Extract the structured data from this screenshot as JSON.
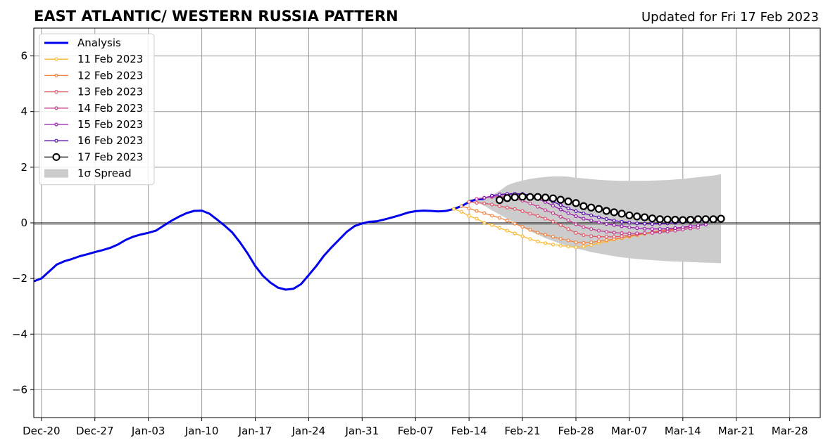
{
  "chart_data": {
    "type": "line",
    "title": "EAST ATLANTIC/ WESTERN RUSSIA PATTERN",
    "subtitle": "Updated for Fri 17 Feb 2023",
    "xlabel": "",
    "ylabel": "",
    "ylim": [
      -7,
      7
    ],
    "xlim": [
      "2022-12-19",
      "2023-04-01"
    ],
    "grid": true,
    "legend_position": "top-left",
    "x_ticks": [
      {
        "date": "2022-12-20",
        "label": "Dec-20"
      },
      {
        "date": "2022-12-27",
        "label": "Dec-27"
      },
      {
        "date": "2023-01-03",
        "label": "Jan-03"
      },
      {
        "date": "2023-01-10",
        "label": "Jan-10"
      },
      {
        "date": "2023-01-17",
        "label": "Jan-17"
      },
      {
        "date": "2023-01-24",
        "label": "Jan-24"
      },
      {
        "date": "2023-01-31",
        "label": "Jan-31"
      },
      {
        "date": "2023-02-07",
        "label": "Feb-07"
      },
      {
        "date": "2023-02-14",
        "label": "Feb-14"
      },
      {
        "date": "2023-02-21",
        "label": "Feb-21"
      },
      {
        "date": "2023-02-28",
        "label": "Feb-28"
      },
      {
        "date": "2023-03-07",
        "label": "Mar-07"
      },
      {
        "date": "2023-03-14",
        "label": "Mar-14"
      },
      {
        "date": "2023-03-21",
        "label": "Mar-21"
      },
      {
        "date": "2023-03-28",
        "label": "Mar-28"
      }
    ],
    "y_ticks": [
      {
        "value": 6,
        "label": "6"
      },
      {
        "value": 4,
        "label": "4"
      },
      {
        "value": 2,
        "label": "2"
      },
      {
        "value": 0,
        "label": "0"
      },
      {
        "value": -2,
        "label": "−2"
      },
      {
        "value": -4,
        "label": "−4"
      },
      {
        "value": -6,
        "label": "−6"
      }
    ],
    "series": [
      {
        "name": "Analysis",
        "color": "#0000ee",
        "marker": "none",
        "x": [
          "2022-12-19",
          "2022-12-20",
          "2022-12-21",
          "2022-12-22",
          "2022-12-23",
          "2022-12-24",
          "2022-12-25",
          "2022-12-26",
          "2022-12-27",
          "2022-12-28",
          "2022-12-29",
          "2022-12-30",
          "2022-12-31",
          "2023-01-01",
          "2023-01-02",
          "2023-01-03",
          "2023-01-04",
          "2023-01-05",
          "2023-01-06",
          "2023-01-07",
          "2023-01-08",
          "2023-01-09",
          "2023-01-10",
          "2023-01-11",
          "2023-01-12",
          "2023-01-13",
          "2023-01-14",
          "2023-01-15",
          "2023-01-16",
          "2023-01-17",
          "2023-01-18",
          "2023-01-19",
          "2023-01-20",
          "2023-01-21",
          "2023-01-22",
          "2023-01-23",
          "2023-01-24",
          "2023-01-25",
          "2023-01-26",
          "2023-01-27",
          "2023-01-28",
          "2023-01-29",
          "2023-01-30",
          "2023-01-31",
          "2023-02-01",
          "2023-02-02",
          "2023-02-03",
          "2023-02-04",
          "2023-02-05",
          "2023-02-06",
          "2023-02-07",
          "2023-02-08",
          "2023-02-09",
          "2023-02-10",
          "2023-02-11",
          "2023-02-12",
          "2023-02-13",
          "2023-02-14",
          "2023-02-15",
          "2023-02-16"
        ],
        "values": [
          -2.1,
          -2.0,
          -1.75,
          -1.5,
          -1.38,
          -1.3,
          -1.2,
          -1.13,
          -1.05,
          -0.98,
          -0.9,
          -0.78,
          -0.62,
          -0.5,
          -0.42,
          -0.36,
          -0.28,
          -0.1,
          0.07,
          0.22,
          0.35,
          0.43,
          0.44,
          0.33,
          0.12,
          -0.1,
          -0.35,
          -0.7,
          -1.1,
          -1.55,
          -1.9,
          -2.15,
          -2.33,
          -2.4,
          -2.37,
          -2.2,
          -1.88,
          -1.55,
          -1.18,
          -0.88,
          -0.6,
          -0.32,
          -0.12,
          -0.02,
          0.04,
          0.06,
          0.13,
          0.2,
          0.28,
          0.37,
          0.42,
          0.44,
          0.43,
          0.41,
          0.43,
          0.5,
          0.6,
          0.75,
          0.85,
          0.86
        ]
      },
      {
        "name": "11 Feb 2023",
        "color": "#fcb830",
        "marker": "dot",
        "x": [
          "2023-02-12",
          "2023-02-13",
          "2023-02-14",
          "2023-02-15",
          "2023-02-16",
          "2023-02-17",
          "2023-02-18",
          "2023-02-19",
          "2023-02-20",
          "2023-02-21",
          "2023-02-22",
          "2023-02-23",
          "2023-02-24",
          "2023-02-25",
          "2023-02-26",
          "2023-02-27",
          "2023-02-28",
          "2023-03-01",
          "2023-03-02",
          "2023-03-03",
          "2023-03-04",
          "2023-03-05",
          "2023-03-06",
          "2023-03-07",
          "2023-03-08",
          "2023-03-09",
          "2023-03-10",
          "2023-03-11",
          "2023-03-12",
          "2023-03-13"
        ],
        "values": [
          0.5,
          0.4,
          0.25,
          0.15,
          0.0,
          -0.08,
          -0.18,
          -0.28,
          -0.38,
          -0.48,
          -0.58,
          -0.67,
          -0.73,
          -0.78,
          -0.82,
          -0.85,
          -0.88,
          -0.85,
          -0.8,
          -0.72,
          -0.66,
          -0.6,
          -0.55,
          -0.5,
          -0.45,
          -0.4,
          -0.36,
          -0.32,
          -0.28,
          -0.25
        ]
      },
      {
        "name": "12 Feb 2023",
        "color": "#f4823c",
        "marker": "dot",
        "x": [
          "2023-02-13",
          "2023-02-14",
          "2023-02-15",
          "2023-02-16",
          "2023-02-17",
          "2023-02-18",
          "2023-02-19",
          "2023-02-20",
          "2023-02-21",
          "2023-02-22",
          "2023-02-23",
          "2023-02-24",
          "2023-02-25",
          "2023-02-26",
          "2023-02-27",
          "2023-02-28",
          "2023-03-01",
          "2023-03-02",
          "2023-03-03",
          "2023-03-04",
          "2023-03-05",
          "2023-03-06",
          "2023-03-07",
          "2023-03-08",
          "2023-03-09",
          "2023-03-10",
          "2023-03-11",
          "2023-03-12",
          "2023-03-13",
          "2023-03-14"
        ],
        "values": [
          0.6,
          0.52,
          0.43,
          0.35,
          0.26,
          0.18,
          0.08,
          -0.03,
          -0.14,
          -0.25,
          -0.35,
          -0.43,
          -0.5,
          -0.57,
          -0.63,
          -0.7,
          -0.72,
          -0.7,
          -0.66,
          -0.62,
          -0.58,
          -0.54,
          -0.48,
          -0.43,
          -0.38,
          -0.33,
          -0.28,
          -0.24,
          -0.21,
          -0.18
        ]
      },
      {
        "name": "13 Feb 2023",
        "color": "#e3576a",
        "marker": "dot",
        "x": [
          "2023-02-14",
          "2023-02-15",
          "2023-02-16",
          "2023-02-17",
          "2023-02-18",
          "2023-02-19",
          "2023-02-20",
          "2023-02-21",
          "2023-02-22",
          "2023-02-23",
          "2023-02-24",
          "2023-02-25",
          "2023-02-26",
          "2023-02-27",
          "2023-02-28",
          "2023-03-01",
          "2023-03-02",
          "2023-03-03",
          "2023-03-04",
          "2023-03-05",
          "2023-03-06",
          "2023-03-07",
          "2023-03-08",
          "2023-03-09",
          "2023-03-10",
          "2023-03-11",
          "2023-03-12",
          "2023-03-13",
          "2023-03-14",
          "2023-03-15"
        ],
        "values": [
          0.75,
          0.72,
          0.7,
          0.66,
          0.6,
          0.55,
          0.5,
          0.42,
          0.33,
          0.25,
          0.15,
          0.05,
          -0.08,
          -0.22,
          -0.36,
          -0.44,
          -0.48,
          -0.5,
          -0.5,
          -0.5,
          -0.48,
          -0.45,
          -0.42,
          -0.38,
          -0.34,
          -0.3,
          -0.26,
          -0.22,
          -0.18,
          -0.15
        ]
      },
      {
        "name": "14 Feb 2023",
        "color": "#c43c8e",
        "marker": "dot",
        "x": [
          "2023-02-15",
          "2023-02-16",
          "2023-02-17",
          "2023-02-18",
          "2023-02-19",
          "2023-02-20",
          "2023-02-21",
          "2023-02-22",
          "2023-02-23",
          "2023-02-24",
          "2023-02-25",
          "2023-02-26",
          "2023-02-27",
          "2023-02-28",
          "2023-03-01",
          "2023-03-02",
          "2023-03-03",
          "2023-03-04",
          "2023-03-05",
          "2023-03-06",
          "2023-03-07",
          "2023-03-08",
          "2023-03-09",
          "2023-03-10",
          "2023-03-11",
          "2023-03-12",
          "2023-03-13",
          "2023-03-14",
          "2023-03-15",
          "2023-03-16"
        ],
        "values": [
          0.86,
          0.9,
          0.93,
          0.94,
          0.92,
          0.87,
          0.8,
          0.7,
          0.58,
          0.46,
          0.35,
          0.22,
          0.1,
          -0.05,
          -0.15,
          -0.22,
          -0.28,
          -0.32,
          -0.35,
          -0.37,
          -0.38,
          -0.38,
          -0.37,
          -0.36,
          -0.34,
          -0.31,
          -0.28,
          -0.24,
          -0.2,
          -0.17
        ]
      },
      {
        "name": "15 Feb 2023",
        "color": "#9a1ab1",
        "marker": "dot",
        "x": [
          "2023-02-16",
          "2023-02-17",
          "2023-02-18",
          "2023-02-19",
          "2023-02-20",
          "2023-02-21",
          "2023-02-22",
          "2023-02-23",
          "2023-02-24",
          "2023-02-25",
          "2023-02-26",
          "2023-02-27",
          "2023-02-28",
          "2023-03-01",
          "2023-03-02",
          "2023-03-03",
          "2023-03-04",
          "2023-03-05",
          "2023-03-06",
          "2023-03-07",
          "2023-03-08",
          "2023-03-09",
          "2023-03-10",
          "2023-03-11",
          "2023-03-12",
          "2023-03-13",
          "2023-03-14",
          "2023-03-15",
          "2023-03-16",
          "2023-03-17"
        ],
        "values": [
          0.9,
          0.97,
          1.0,
          1.02,
          1.03,
          1.0,
          0.95,
          0.86,
          0.75,
          0.62,
          0.48,
          0.35,
          0.24,
          0.15,
          0.08,
          0.02,
          -0.04,
          -0.08,
          -0.12,
          -0.16,
          -0.19,
          -0.21,
          -0.22,
          -0.22,
          -0.21,
          -0.19,
          -0.16,
          -0.12,
          -0.09,
          -0.06
        ]
      },
      {
        "name": "16 Feb 2023",
        "color": "#5a09b0",
        "marker": "dot",
        "x": [
          "2023-02-17",
          "2023-02-18",
          "2023-02-19",
          "2023-02-20",
          "2023-02-21",
          "2023-02-22",
          "2023-02-23",
          "2023-02-24",
          "2023-02-25",
          "2023-02-26",
          "2023-02-27",
          "2023-02-28",
          "2023-03-01",
          "2023-03-02",
          "2023-03-03",
          "2023-03-04",
          "2023-03-05",
          "2023-03-06",
          "2023-03-07",
          "2023-03-08",
          "2023-03-09",
          "2023-03-10",
          "2023-03-11",
          "2023-03-12",
          "2023-03-13",
          "2023-03-14",
          "2023-03-15",
          "2023-03-16",
          "2023-03-17",
          "2023-03-18"
        ],
        "values": [
          0.98,
          1.02,
          1.04,
          1.05,
          1.04,
          1.0,
          0.94,
          0.86,
          0.76,
          0.64,
          0.52,
          0.42,
          0.34,
          0.27,
          0.2,
          0.14,
          0.08,
          0.04,
          0.01,
          -0.02,
          -0.03,
          -0.04,
          -0.03,
          -0.02,
          0.0,
          0.02,
          0.04,
          0.06,
          0.08,
          0.1
        ]
      },
      {
        "name": "17 Feb 2023",
        "color": "#000000",
        "marker": "circle",
        "x": [
          "2023-02-18",
          "2023-02-19",
          "2023-02-20",
          "2023-02-21",
          "2023-02-22",
          "2023-02-23",
          "2023-02-24",
          "2023-02-25",
          "2023-02-26",
          "2023-02-27",
          "2023-02-28",
          "2023-03-01",
          "2023-03-02",
          "2023-03-03",
          "2023-03-04",
          "2023-03-05",
          "2023-03-06",
          "2023-03-07",
          "2023-03-08",
          "2023-03-09",
          "2023-03-10",
          "2023-03-11",
          "2023-03-12",
          "2023-03-13",
          "2023-03-14",
          "2023-03-15",
          "2023-03-16",
          "2023-03-17",
          "2023-03-18",
          "2023-03-19"
        ],
        "values": [
          0.82,
          0.89,
          0.92,
          0.94,
          0.93,
          0.93,
          0.91,
          0.88,
          0.83,
          0.77,
          0.71,
          0.6,
          0.55,
          0.5,
          0.43,
          0.38,
          0.33,
          0.27,
          0.23,
          0.2,
          0.16,
          0.13,
          0.12,
          0.11,
          0.1,
          0.11,
          0.13,
          0.13,
          0.13,
          0.15
        ]
      }
    ],
    "spread": {
      "name": "1σ Spread",
      "color": "#cccccc",
      "x": [
        "2023-02-14",
        "2023-02-15",
        "2023-02-16",
        "2023-02-17",
        "2023-02-18",
        "2023-02-19",
        "2023-02-20",
        "2023-02-21",
        "2023-02-22",
        "2023-02-23",
        "2023-02-24",
        "2023-02-25",
        "2023-02-26",
        "2023-02-27",
        "2023-02-28",
        "2023-03-01",
        "2023-03-02",
        "2023-03-03",
        "2023-03-04",
        "2023-03-05",
        "2023-03-06",
        "2023-03-07",
        "2023-03-08",
        "2023-03-09",
        "2023-03-10",
        "2023-03-11",
        "2023-03-12",
        "2023-03-13",
        "2023-03-14",
        "2023-03-15",
        "2023-03-16",
        "2023-03-17",
        "2023-03-18",
        "2023-03-19"
      ],
      "upper": [
        0.85,
        0.88,
        0.92,
        1.0,
        1.15,
        1.35,
        1.45,
        1.52,
        1.58,
        1.62,
        1.65,
        1.67,
        1.67,
        1.66,
        1.62,
        1.6,
        1.57,
        1.55,
        1.53,
        1.52,
        1.51,
        1.51,
        1.51,
        1.51,
        1.52,
        1.53,
        1.54,
        1.56,
        1.58,
        1.61,
        1.64,
        1.67,
        1.7,
        1.75
      ],
      "lower": [
        0.8,
        0.75,
        0.62,
        0.45,
        0.3,
        0.15,
        0.0,
        -0.15,
        -0.3,
        -0.42,
        -0.55,
        -0.65,
        -0.75,
        -0.85,
        -0.92,
        -0.98,
        -1.05,
        -1.1,
        -1.15,
        -1.2,
        -1.24,
        -1.27,
        -1.3,
        -1.32,
        -1.34,
        -1.36,
        -1.38,
        -1.39,
        -1.4,
        -1.41,
        -1.42,
        -1.43,
        -1.44,
        -1.45
      ]
    }
  }
}
